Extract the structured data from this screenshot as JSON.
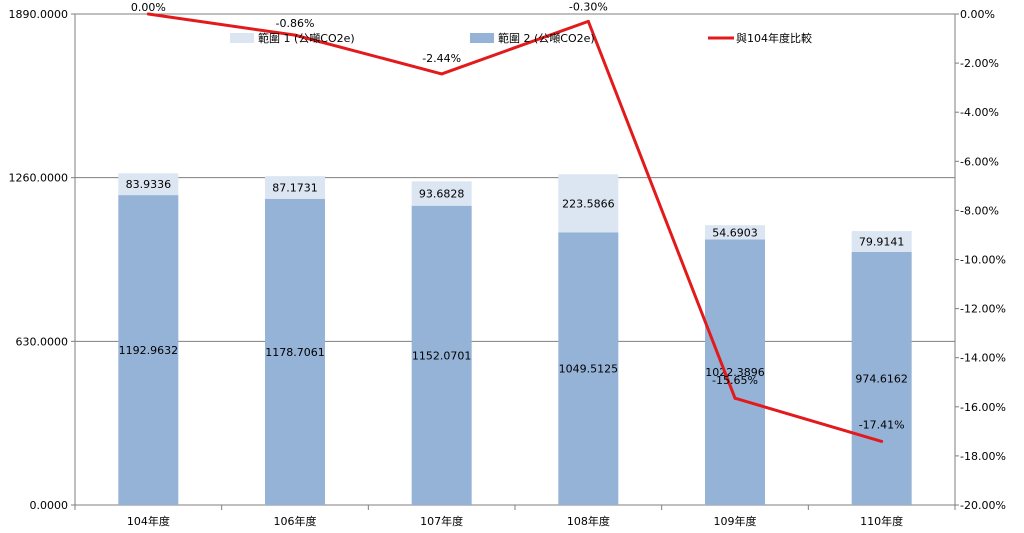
{
  "chart_data": {
    "type": "bar",
    "stacked": true,
    "categories": [
      "104年度",
      "106年度",
      "107年度",
      "108年度",
      "109年度",
      "110年度"
    ],
    "series": [
      {
        "name": "範圍 2 (公噸CO2e)",
        "type": "bar",
        "axis": "left",
        "color": "#95B3D7",
        "values": [
          1192.9632,
          1178.7061,
          1152.0701,
          1049.5125,
          1022.3896,
          974.6162
        ],
        "labels": [
          "1192.9632",
          "1178.7061",
          "1152.0701",
          "1049.5125",
          "1022.3896",
          "974.6162"
        ]
      },
      {
        "name": "範圍 1 (公噸CO2e)",
        "type": "bar",
        "axis": "left",
        "color": "#DCE6F2",
        "values": [
          83.9336,
          87.1731,
          93.6828,
          223.5866,
          54.6903,
          79.9141
        ],
        "labels": [
          "83.9336",
          "87.1731",
          "93.6828",
          "223.5866",
          "54.6903",
          "79.9141"
        ]
      },
      {
        "name": "與104年度比較",
        "type": "line",
        "axis": "right",
        "color": "#E31A1C",
        "values": [
          0.0,
          -0.86,
          -2.44,
          -0.3,
          -15.65,
          -17.41
        ],
        "labels": [
          "0.00%",
          "-0.86%",
          "-2.44%",
          "-0.30%",
          "-15.65%",
          "-17.41%"
        ]
      }
    ],
    "y_left": {
      "range": [
        0,
        1890
      ],
      "ticks": [
        "0.0000",
        "630.0000",
        "1260.0000",
        "1890.0000"
      ],
      "tick_values": [
        0,
        630,
        1260,
        1890
      ]
    },
    "y_right": {
      "range": [
        -20,
        0
      ],
      "ticks": [
        "0.00%",
        "-2.00%",
        "-4.00%",
        "-6.00%",
        "-8.00%",
        "-10.00%",
        "-12.00%",
        "-14.00%",
        "-16.00%",
        "-18.00%",
        "-20.00%"
      ],
      "tick_values": [
        0,
        -2,
        -4,
        -6,
        -8,
        -10,
        -12,
        -14,
        -16,
        -18,
        -20
      ]
    },
    "grid": true,
    "legend_position": "top",
    "title": "",
    "xlabel": "",
    "ylabel": ""
  }
}
